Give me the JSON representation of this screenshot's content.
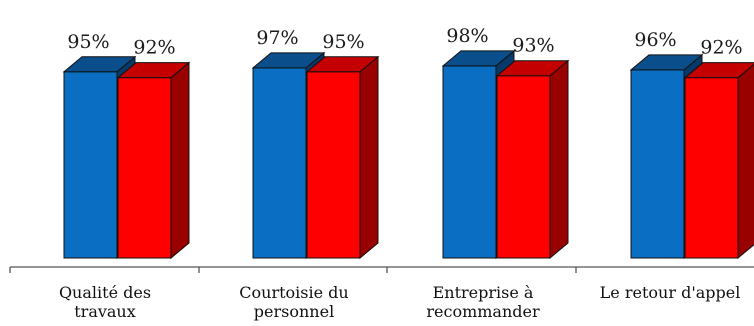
{
  "chart_data": {
    "type": "bar",
    "categories": [
      [
        "Qualité des",
        "travaux"
      ],
      [
        "Courtoisie du",
        "personnel"
      ],
      [
        "Entreprise à",
        "recommander"
      ],
      [
        "Le retour d'appel"
      ]
    ],
    "series": [
      {
        "values": [
          95,
          97,
          98,
          96
        ],
        "labels": [
          "95%",
          "97%",
          "98%",
          "96%"
        ]
      },
      {
        "values": [
          92,
          95,
          93,
          92
        ],
        "labels": [
          "92%",
          "95%",
          "93%",
          "92%"
        ]
      }
    ],
    "colors": {
      "series_0": {
        "front": "#0a6fc2",
        "top": "#0a4f8c",
        "side": "#063a6a"
      },
      "series_1": {
        "front": "#ff0000",
        "top": "#c40000",
        "side": "#990000"
      }
    },
    "bar_style": "3d",
    "title": "",
    "xlabel": "",
    "ylabel": "",
    "grid": false,
    "legend": false
  }
}
